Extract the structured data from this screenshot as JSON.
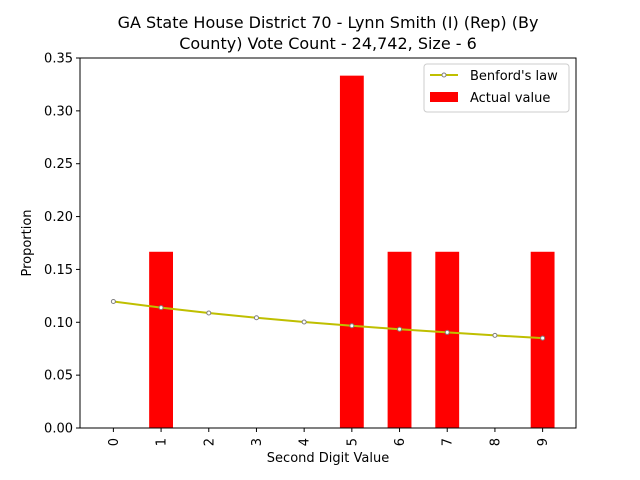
{
  "chart_data": {
    "type": "bar",
    "title_line1": "GA State House District 70 - Lynn Smith (I) (Rep) (By",
    "title_line2": "County) Vote Count - 24,742, Size - 6",
    "xlabel": "Second Digit Value",
    "ylabel": "Proportion",
    "categories": [
      "0",
      "1",
      "2",
      "3",
      "4",
      "5",
      "6",
      "7",
      "8",
      "9"
    ],
    "ylim": [
      0,
      0.35
    ],
    "yticks": [
      "0.00",
      "0.05",
      "0.10",
      "0.15",
      "0.20",
      "0.25",
      "0.30",
      "0.35"
    ],
    "series": [
      {
        "name": "Actual value",
        "kind": "bar",
        "color": "#ff0000",
        "values": [
          0,
          0.1667,
          0,
          0,
          0,
          0.3333,
          0.1667,
          0.1667,
          0,
          0.1667
        ]
      },
      {
        "name": "Benford's law",
        "kind": "line",
        "color": "#bfbf00",
        "marker_color": "#7f7f7f",
        "values": [
          0.1197,
          0.1139,
          0.1088,
          0.1043,
          0.1003,
          0.0967,
          0.0934,
          0.0904,
          0.0876,
          0.085
        ]
      }
    ],
    "legend_position": "top-right",
    "grid": false
  }
}
